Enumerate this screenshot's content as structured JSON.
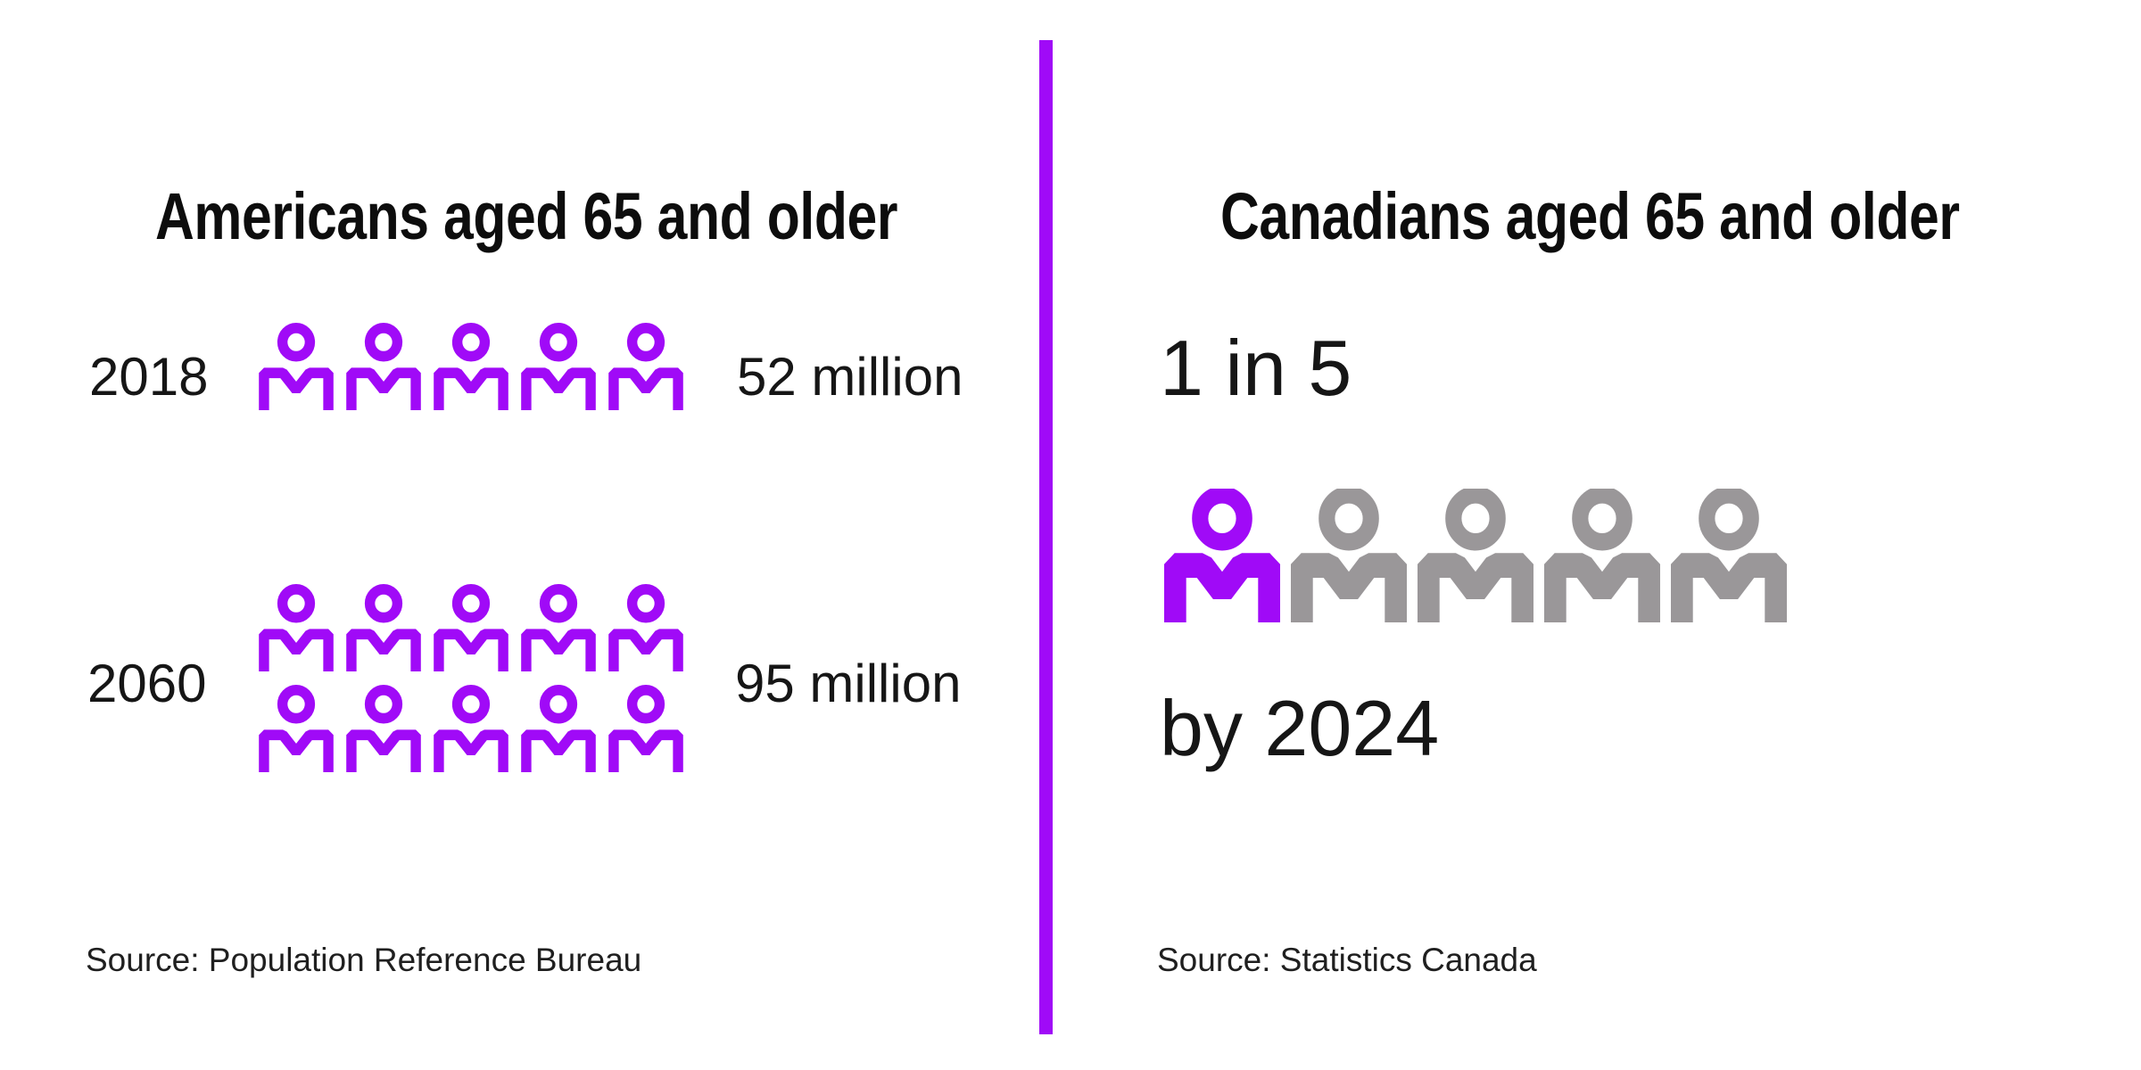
{
  "colors": {
    "purple": "#A00AF7",
    "gray": "#9A9799",
    "divider": "#A00AF7",
    "heading": "#0D0D0D",
    "text": "#161616",
    "source_text": "#1F1F1F"
  },
  "left_panel": {
    "title": "Americans aged 65 and older",
    "rows": [
      {
        "label": "2018",
        "value": "52 million",
        "icon_count": 5
      },
      {
        "label": "2060",
        "value": "95 million",
        "icon_count": 10
      }
    ],
    "source": "Source: Population Reference Bureau"
  },
  "right_panel": {
    "title": "Canadians aged 65 and older",
    "stat_line_1": "1 in 5",
    "icon_total": 5,
    "icon_highlighted": 1,
    "stat_line_2": "by 2024",
    "source": "Source: Statistics Canada"
  },
  "chart_data": [
    {
      "type": "pictograph",
      "title": "Americans aged 65 and older",
      "categories": [
        "2018",
        "2060"
      ],
      "values": [
        52,
        95
      ],
      "unit": "million people",
      "value_labels": [
        "52 million",
        "95 million"
      ],
      "icon_counts": [
        5,
        10
      ],
      "people_per_icon_million": 10,
      "icon_color": "#A00AF7",
      "source": "Source: Population Reference Bureau"
    },
    {
      "type": "pictograph",
      "title": "Canadians aged 65 and older",
      "statistic": "1 in 5",
      "timeframe": "by 2024",
      "ratio_numerator": 1,
      "ratio_denominator": 5,
      "icon_counts": {
        "highlighted": 1,
        "total": 5
      },
      "highlight_color": "#A00AF7",
      "muted_color": "#9A9799",
      "source": "Source: Statistics Canada"
    }
  ]
}
